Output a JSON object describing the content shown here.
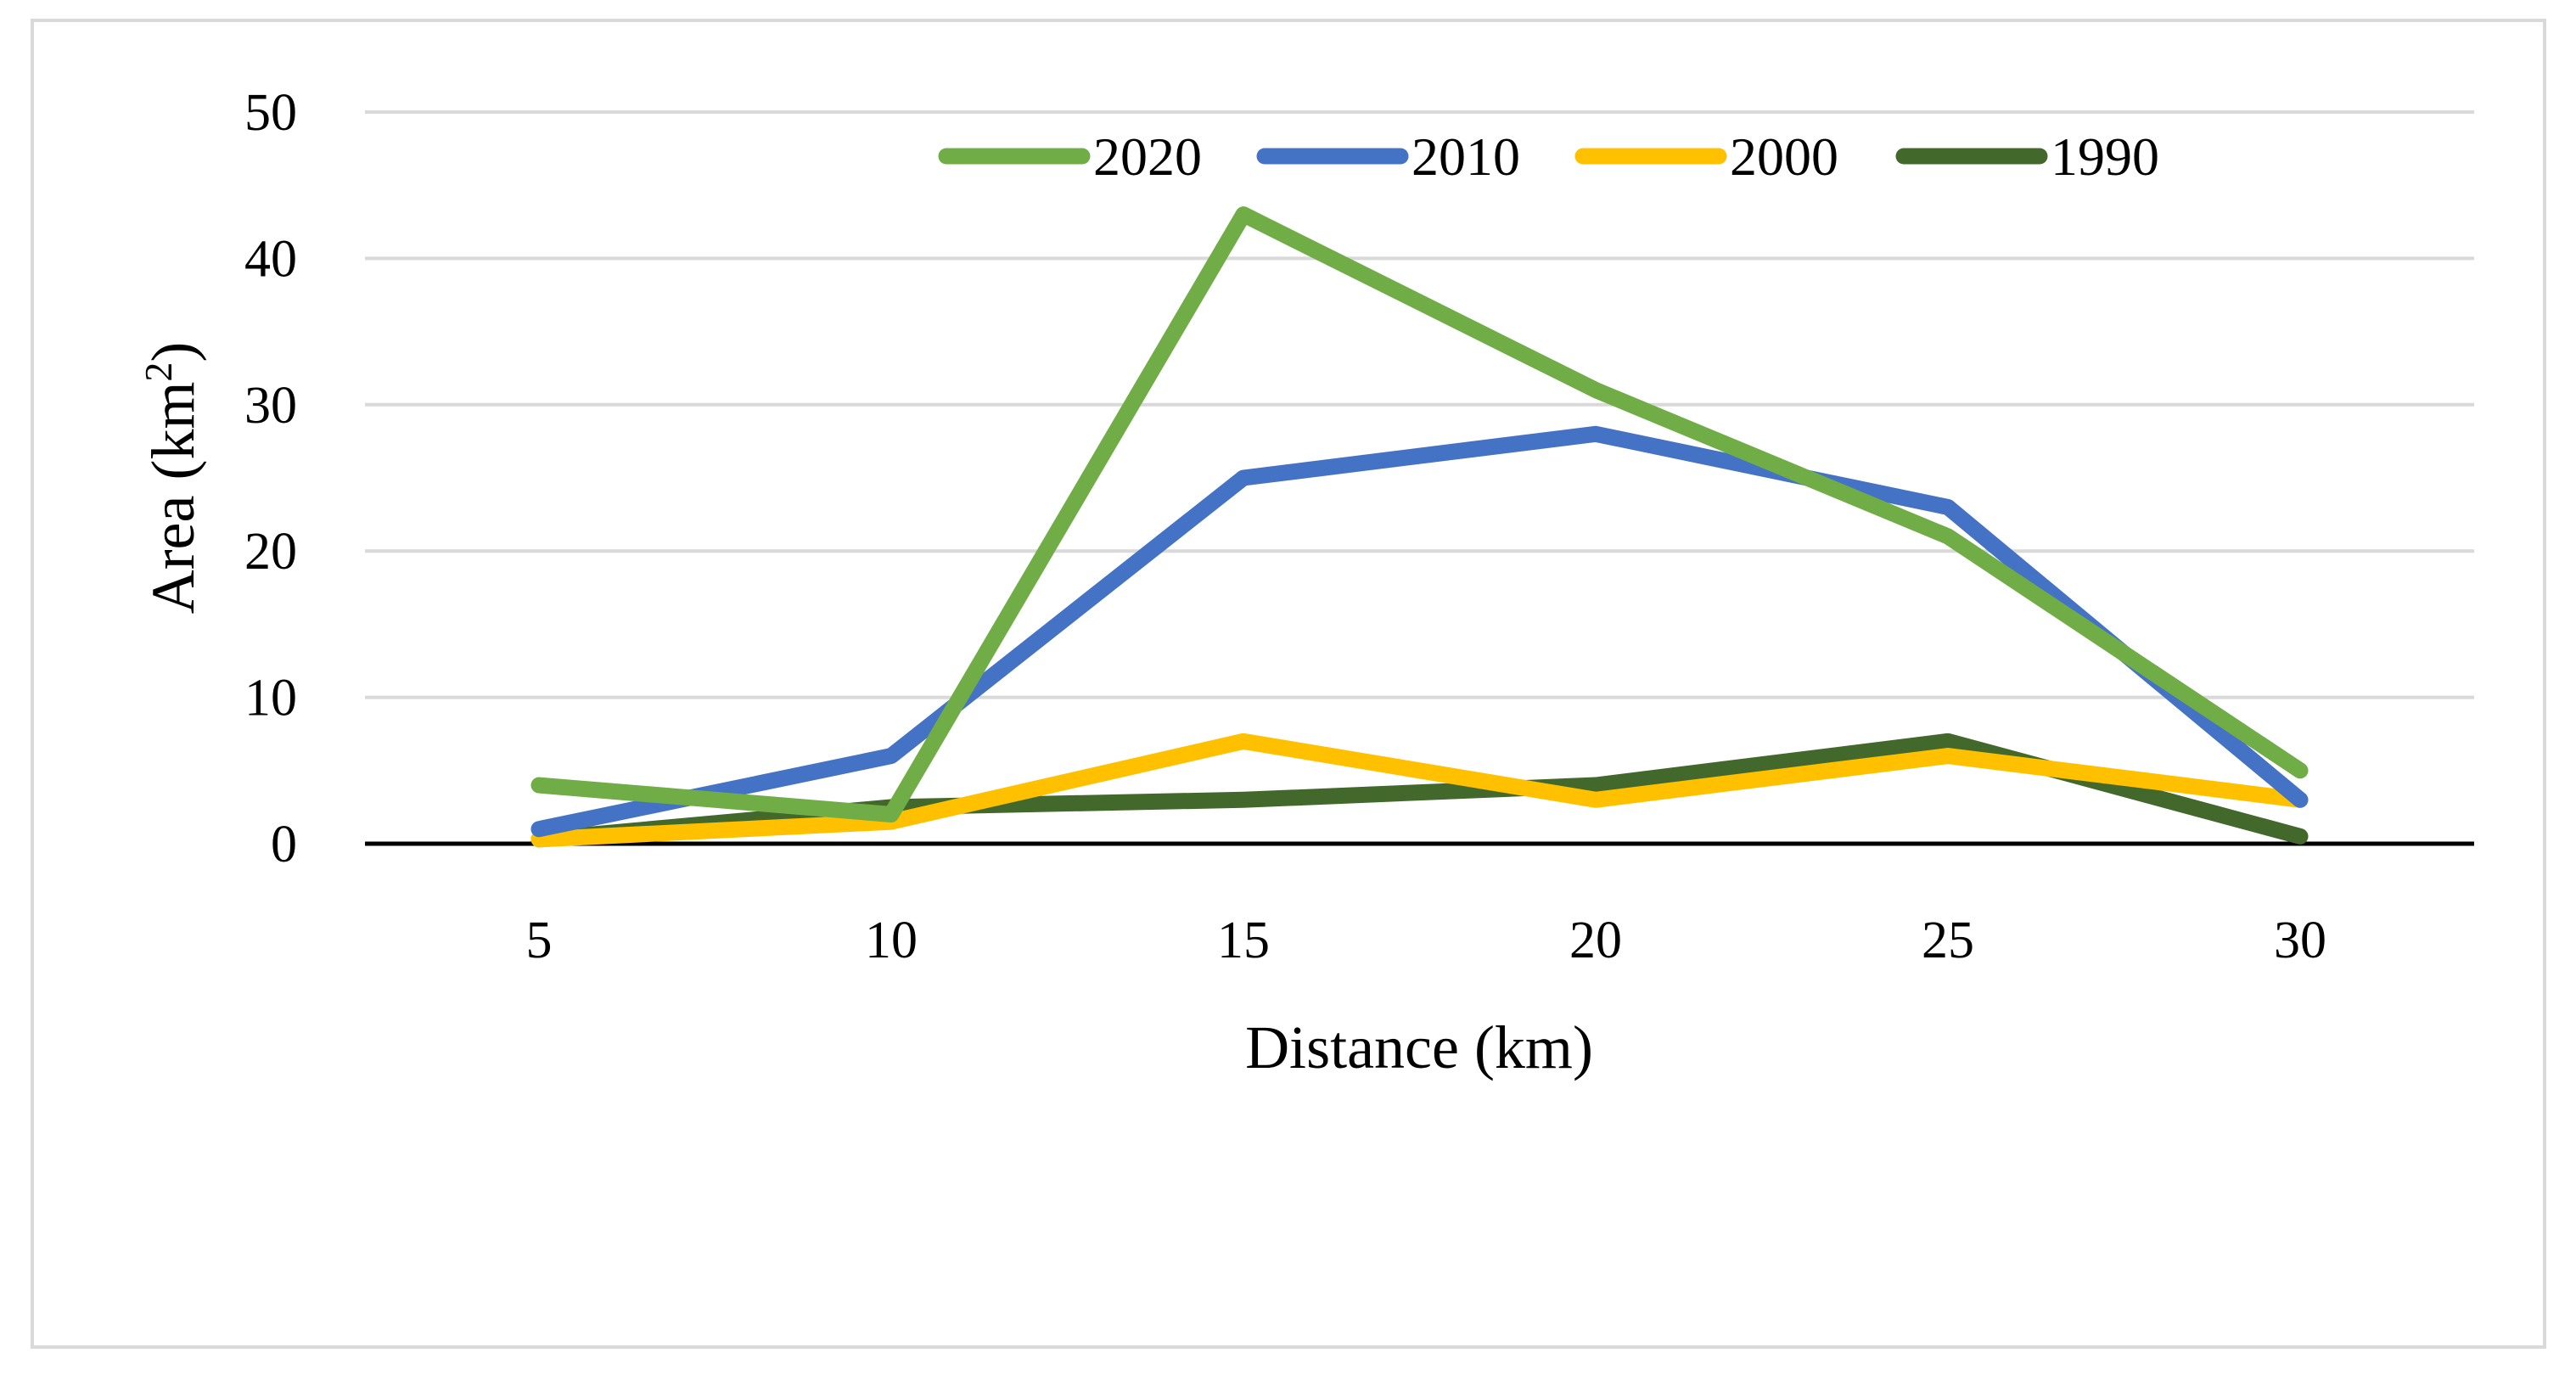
{
  "chart_data": {
    "type": "line",
    "title": "",
    "xlabel": "Distance (km)",
    "ylabel": "Area (km²)",
    "ylabel_base": "Area (km",
    "ylabel_sup": "2",
    "ylabel_close": ")",
    "categories": [
      "5",
      "10",
      "15",
      "20",
      "25",
      "30"
    ],
    "x": [
      5,
      10,
      15,
      20,
      25,
      30
    ],
    "ylim": [
      0,
      50
    ],
    "yticks": [
      "0",
      "10",
      "20",
      "30",
      "40",
      "50"
    ],
    "grid": true,
    "legend_position": "top",
    "series": [
      {
        "name": "2020",
        "color": "#70ad47",
        "values": [
          4,
          2,
          43,
          31,
          21,
          5
        ]
      },
      {
        "name": "2010",
        "color": "#4472c4",
        "values": [
          1,
          6,
          25,
          28,
          23,
          3
        ]
      },
      {
        "name": "2000",
        "color": "#ffc000",
        "values": [
          0.3,
          1.5,
          7,
          3,
          6,
          3
        ]
      },
      {
        "name": "1990",
        "color": "#43682b",
        "values": [
          0.3,
          2.5,
          3,
          4,
          7,
          0.5
        ]
      }
    ]
  }
}
